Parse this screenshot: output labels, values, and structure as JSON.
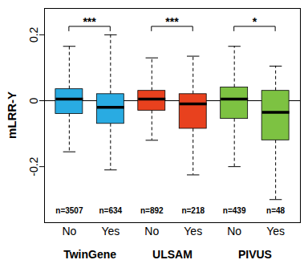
{
  "chart_data": {
    "type": "box",
    "y_label": "mLRR-Y",
    "categories": [
      "No",
      "Yes"
    ],
    "ylim": [
      -0.37,
      0.28
    ],
    "yticks": [
      -0.2,
      0,
      0.2
    ],
    "hline": 0,
    "series": [
      {
        "name": "TwinGene",
        "color": "#29abe2",
        "n_labels": [
          "n=3507",
          "n=634"
        ],
        "significance": "***",
        "stats": [
          [
            -0.155,
            -0.04,
            0.005,
            0.035,
            0.165
          ],
          [
            -0.21,
            -0.07,
            -0.02,
            0.02,
            0.2
          ]
        ]
      },
      {
        "name": "ULSAM",
        "color": "#e8411e",
        "n_labels": [
          "n=892",
          "n=218"
        ],
        "significance": "***",
        "stats": [
          [
            -0.12,
            -0.03,
            0.005,
            0.03,
            0.13
          ],
          [
            -0.225,
            -0.085,
            -0.01,
            0.02,
            0.135
          ]
        ]
      },
      {
        "name": "PIVUS",
        "color": "#7dc242",
        "n_labels": [
          "n=439",
          "n=48"
        ],
        "significance": "*",
        "stats": [
          [
            -0.2,
            -0.055,
            0.005,
            0.04,
            0.165
          ],
          [
            -0.3,
            -0.12,
            -0.035,
            0.03,
            0.105
          ]
        ]
      }
    ]
  }
}
